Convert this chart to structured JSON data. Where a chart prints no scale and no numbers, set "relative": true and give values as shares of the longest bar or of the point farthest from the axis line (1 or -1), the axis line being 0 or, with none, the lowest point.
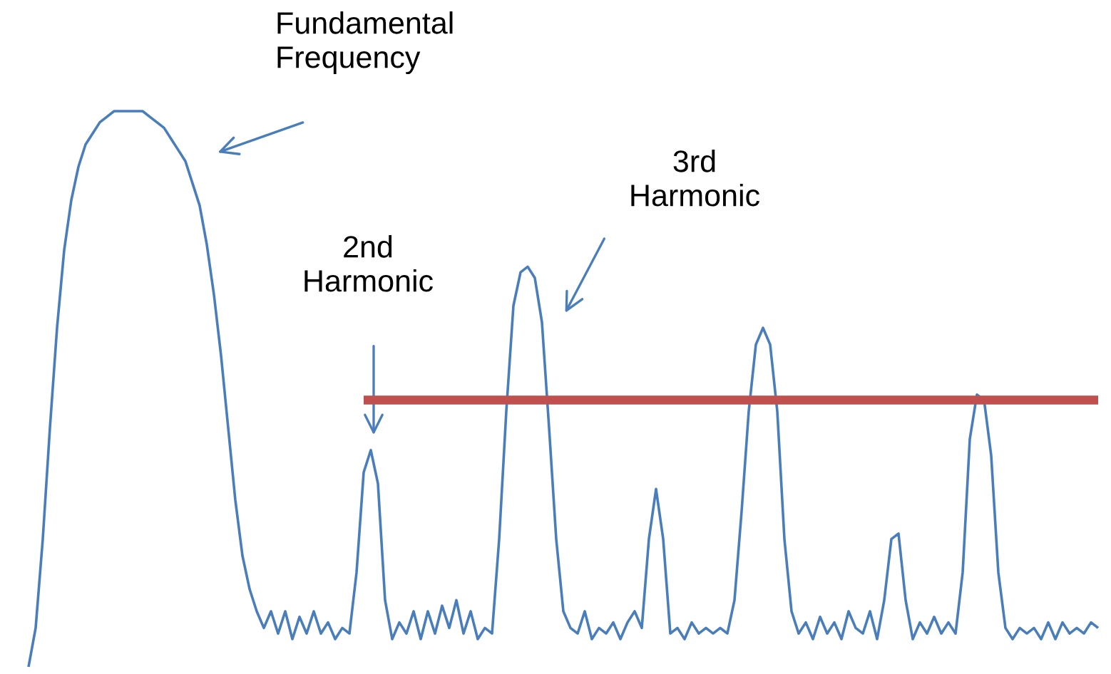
{
  "chart_data": {
    "type": "line",
    "relative": true,
    "legend": false,
    "categories": [
      null,
      null,
      null,
      null,
      null,
      null,
      null,
      null,
      null,
      null,
      null,
      null,
      null,
      null,
      null,
      null,
      null,
      null,
      null,
      null,
      null,
      null,
      null,
      null,
      null,
      null,
      null,
      null,
      null,
      null,
      null,
      null,
      null,
      null,
      null,
      null,
      null,
      null,
      null,
      null,
      null,
      null,
      null,
      null,
      null,
      null,
      null,
      null,
      null,
      null,
      null,
      null,
      null,
      null,
      null,
      null,
      null,
      null,
      null,
      null,
      null,
      null,
      null,
      null,
      null,
      null,
      null,
      null,
      null,
      null,
      null,
      null,
      null,
      null,
      null,
      null,
      null,
      null,
      null,
      null,
      null,
      null,
      null,
      null,
      null,
      null,
      null,
      null,
      null,
      null,
      null,
      null,
      null,
      null,
      null,
      null,
      null,
      null,
      null,
      null,
      null,
      null,
      null,
      null,
      null,
      null,
      null,
      null,
      null,
      null,
      null,
      null,
      null,
      null,
      null,
      null,
      null,
      null,
      null,
      null,
      null,
      null,
      null,
      null,
      null,
      null,
      null,
      null,
      null,
      null,
      null,
      null,
      null,
      null,
      null,
      null,
      null,
      null,
      null,
      null,
      null,
      null,
      null,
      null,
      null,
      null,
      null,
      null,
      null,
      null,
      null
    ],
    "annotations": [
      "Fundamental\nFrequency",
      "2nd\nHarmonic",
      "3rd\nHarmonic"
    ],
    "series": [
      {
        "color": "#4a7ebb",
        "values": [
          0,
          0.07,
          0.23,
          0.43,
          0.61,
          0.75,
          0.84,
          0.9,
          0.94,
          0.96,
          0.98,
          0.99,
          1.0,
          1,
          1,
          1,
          1.0,
          0.99,
          0.98,
          0.97,
          0.95,
          0.93,
          0.91,
          0.87,
          0.83,
          0.76,
          0.67,
          0.56,
          0.43,
          0.3,
          0.2,
          0.14,
          0.1,
          0.07,
          0.1,
          0.06,
          0.1,
          0.05,
          0.09,
          0.06,
          0.1,
          0.06,
          0.08,
          0.05,
          0.07,
          0.06,
          0.17,
          0.35,
          0.39,
          0.33,
          0.12,
          0.05,
          0.08,
          0.06,
          0.1,
          0.05,
          0.1,
          0.06,
          0.11,
          0.07,
          0.12,
          0.06,
          0.1,
          0.05,
          0.07,
          0.06,
          0.23,
          0.46,
          0.65,
          0.71,
          0.72,
          0.7,
          0.62,
          0.43,
          0.23,
          0.1,
          0.07,
          0.06,
          0.1,
          0.05,
          0.07,
          0.06,
          0.08,
          0.05,
          0.08,
          0.1,
          0.07,
          0.23,
          0.32,
          0.23,
          0.06,
          0.07,
          0.05,
          0.08,
          0.06,
          0.07,
          0.06,
          0.07,
          0.06,
          0.12,
          0.28,
          0.46,
          0.58,
          0.61,
          0.58,
          0.46,
          0.23,
          0.1,
          0.06,
          0.08,
          0.05,
          0.09,
          0.06,
          0.08,
          0.05,
          0.1,
          0.07,
          0.06,
          0.1,
          0.05,
          0.12,
          0.23,
          0.24,
          0.12,
          0.05,
          0.08,
          0.06,
          0.09,
          0.06,
          0.08,
          0.06,
          0.17,
          0.41,
          0.49,
          0.48,
          0.38,
          0.17,
          0.07,
          0.05,
          0.07,
          0.06,
          0.07,
          0.05,
          0.08,
          0.05,
          0.08,
          0.06,
          0.07,
          0.06,
          0.08,
          0.07
        ]
      },
      {
        "color": "#c0504d",
        "values": [
          null,
          null,
          null,
          null,
          null,
          null,
          null,
          null,
          null,
          null,
          null,
          null,
          null,
          null,
          null,
          null,
          null,
          null,
          null,
          null,
          null,
          null,
          null,
          null,
          null,
          null,
          null,
          null,
          null,
          null,
          null,
          null,
          null,
          null,
          null,
          null,
          null,
          null,
          null,
          null,
          null,
          null,
          null,
          null,
          null,
          null,
          null,
          0.48,
          0.48,
          0.48,
          0.48,
          0.48,
          0.48,
          0.48,
          0.48,
          0.48,
          0.48,
          0.48,
          0.48,
          0.48,
          0.48,
          0.48,
          0.48,
          0.48,
          0.48,
          0.48,
          0.48,
          0.48,
          0.48,
          0.48,
          0.48,
          0.48,
          0.48,
          0.48,
          0.48,
          0.48,
          0.48,
          0.48,
          0.48,
          0.48,
          0.48,
          0.48,
          0.48,
          0.48,
          0.48,
          0.48,
          0.48,
          0.48,
          0.48,
          0.48,
          0.48,
          0.48,
          0.48,
          0.48,
          0.48,
          0.48,
          0.48,
          0.48,
          0.48,
          0.48,
          0.48,
          0.48,
          0.48,
          0.48,
          0.48,
          0.48,
          0.48,
          0.48,
          0.48,
          0.48,
          0.48,
          0.48,
          0.48,
          0.48,
          0.48,
          0.48,
          0.48,
          0.48,
          0.48,
          0.48,
          0.48,
          0.48,
          0.48,
          0.48,
          0.48,
          0.48,
          0.48,
          0.48,
          0.48,
          0.48,
          0.48,
          0.48,
          0.48,
          0.48,
          0.48,
          0.48,
          0.48,
          0.48,
          0.48,
          0.48,
          0.48,
          0.48,
          0.48,
          0.48,
          0.48,
          0.48,
          0.48,
          0.48,
          0.48,
          0.48,
          0.48
        ]
      }
    ]
  }
}
